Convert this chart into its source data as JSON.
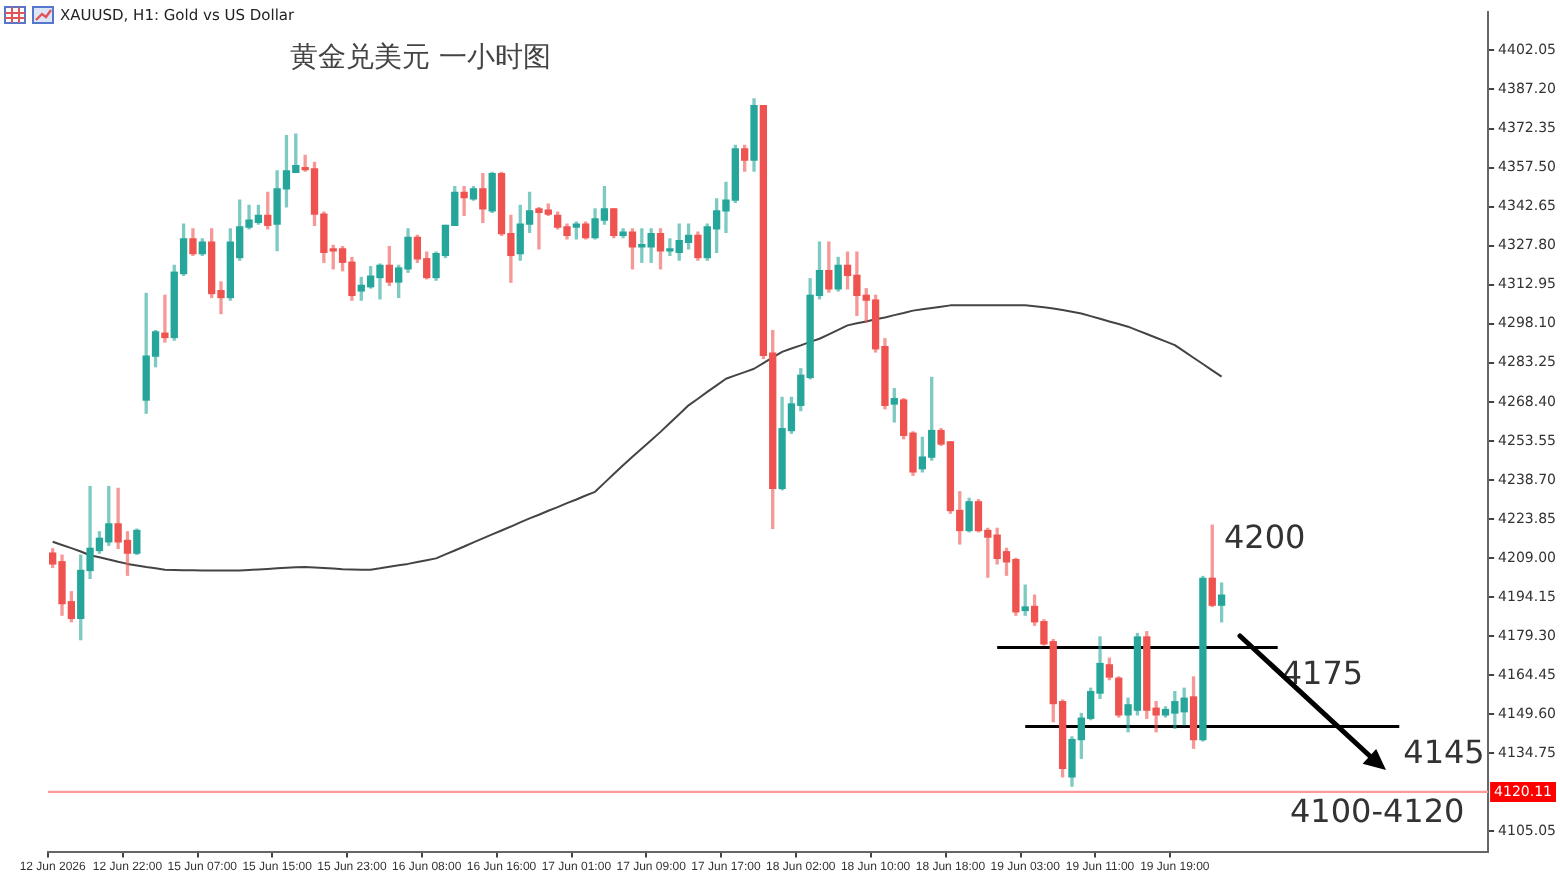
{
  "chart_data": {
    "type": "candlestick",
    "title": "黄金兑美元 一小时图",
    "subtitle": "XAUUSD, H1:  Gold vs US Dollar",
    "categories": [
      "12 Jun 2026",
      null,
      null,
      null,
      null,
      null,
      null,
      null,
      "12 Jun 22:00",
      null,
      null,
      null,
      null,
      null,
      null,
      null,
      "15 Jun 07:00",
      null,
      null,
      null,
      null,
      null,
      null,
      null,
      "15 Jun 15:00",
      null,
      null,
      null,
      null,
      null,
      null,
      null,
      "15 Jun 23:00",
      null,
      null,
      null,
      null,
      null,
      null,
      null,
      "16 Jun 08:00",
      null,
      null,
      null,
      null,
      null,
      null,
      null,
      "16 Jun 16:00",
      null,
      null,
      null,
      null,
      null,
      null,
      null,
      "17 Jun 01:00",
      null,
      null,
      null,
      null,
      null,
      null,
      null,
      "17 Jun 09:00",
      null,
      null,
      null,
      null,
      null,
      null,
      null,
      "17 Jun 17:00",
      null,
      null,
      null,
      null,
      null,
      null,
      null,
      "18 Jun 02:00",
      null,
      null,
      null,
      null,
      null,
      null,
      null,
      "18 Jun 10:00",
      null,
      null,
      null,
      null,
      null,
      null,
      null,
      "18 Jun 18:00",
      null,
      null,
      null,
      null,
      null,
      null,
      null,
      "19 Jun 03:00",
      null,
      null,
      null,
      null,
      null,
      null,
      null,
      "19 Jun 11:00",
      null,
      null,
      null,
      null,
      null,
      null,
      null,
      "19 Jun 19:00",
      null,
      null,
      null,
      null,
      null,
      null,
      null,
      null,
      null,
      null,
      null,
      null,
      null,
      null,
      null,
      null,
      null,
      null,
      null,
      null,
      null,
      null,
      null,
      null,
      null,
      null,
      null,
      null,
      null,
      null,
      null,
      null,
      null
    ],
    "ohlc": [
      [
        4210.9,
        4212.5,
        4205.5,
        4206.8
      ],
      [
        4207.6,
        4210.1,
        4187.3,
        4191.7
      ],
      [
        4192.4,
        4196.2,
        4184.8,
        4186.1
      ],
      [
        4186.1,
        4210.1,
        4178.0,
        4204.3
      ],
      [
        4204.3,
        4236.2,
        4201.3,
        4212.7
      ],
      [
        4211.9,
        4219.0,
        4210.9,
        4216.5
      ],
      [
        4215.2,
        4236.2,
        4213.9,
        4222.0
      ],
      [
        4222.0,
        4235.5,
        4212.7,
        4215.2
      ],
      [
        4215.7,
        4219.0,
        4202.5,
        4210.9
      ],
      [
        4210.9,
        4220.0,
        4210.4,
        4219.5
      ],
      [
        4269.1,
        4309.6,
        4264.1,
        4285.8
      ],
      [
        4285.8,
        4295.5,
        4281.8,
        4295.0
      ],
      [
        4294.5,
        4308.9,
        4291.2,
        4292.9
      ],
      [
        4292.9,
        4320.3,
        4291.9,
        4317.7
      ],
      [
        4317.2,
        4336.0,
        4316.5,
        4330.4
      ],
      [
        4330.4,
        4334.2,
        4324.1,
        4324.8
      ],
      [
        4324.8,
        4330.4,
        4324.1,
        4329.1
      ],
      [
        4329.1,
        4334.2,
        4308.1,
        4309.6
      ],
      [
        4310.7,
        4314.0,
        4302.0,
        4308.1
      ],
      [
        4308.1,
        4334.2,
        4307.1,
        4329.1
      ],
      [
        4323.3,
        4345.1,
        4322.3,
        4334.9
      ],
      [
        4334.9,
        4343.1,
        4334.2,
        4337.5
      ],
      [
        4336.7,
        4343.1,
        4336.0,
        4339.3
      ],
      [
        4339.3,
        4348.1,
        4334.2,
        4335.5
      ],
      [
        4336.0,
        4356.2,
        4325.9,
        4349.4
      ],
      [
        4349.4,
        4369.6,
        4342.6,
        4356.2
      ],
      [
        4355.7,
        4370.2,
        4355.7,
        4358.2
      ],
      [
        4357.5,
        4362.1,
        4356.2,
        4356.7
      ],
      [
        4357.0,
        4359.5,
        4335.5,
        4339.8
      ],
      [
        4339.8,
        4340.5,
        4321.5,
        4325.3
      ],
      [
        4326.6,
        4327.9,
        4319.0,
        4325.8
      ],
      [
        4326.6,
        4327.4,
        4318.3,
        4321.5
      ],
      [
        4321.5,
        4323.3,
        4307.1,
        4308.9
      ],
      [
        4310.6,
        4315.7,
        4307.1,
        4312.7
      ],
      [
        4312.2,
        4319.8,
        4311.7,
        4316.2
      ],
      [
        4315.7,
        4320.8,
        4307.6,
        4320.3
      ],
      [
        4320.3,
        4327.4,
        4312.7,
        4314.0
      ],
      [
        4314.0,
        4320.3,
        4308.1,
        4319.3
      ],
      [
        4319.0,
        4334.2,
        4317.7,
        4330.9
      ],
      [
        4330.9,
        4331.7,
        4321.5,
        4322.8
      ],
      [
        4322.8,
        4325.3,
        4315.2,
        4315.7
      ],
      [
        4315.7,
        4325.3,
        4314.7,
        4324.8
      ],
      [
        4324.1,
        4335.5,
        4323.3,
        4335.5
      ],
      [
        4335.5,
        4350.2,
        4335.5,
        4348.1
      ],
      [
        4348.1,
        4350.2,
        4339.3,
        4346.1
      ],
      [
        4345.6,
        4350.2,
        4345.1,
        4349.4
      ],
      [
        4349.4,
        4355.2,
        4336.7,
        4341.8
      ],
      [
        4341.0,
        4355.7,
        4340.5,
        4355.2
      ],
      [
        4355.2,
        4355.7,
        4331.7,
        4332.4
      ],
      [
        4332.4,
        4339.3,
        4313.9,
        4324.1
      ],
      [
        4324.8,
        4343.1,
        4322.3,
        4336.0
      ],
      [
        4336.0,
        4348.1,
        4332.9,
        4341.0
      ],
      [
        4341.8,
        4342.3,
        4326.6,
        4340.5
      ],
      [
        4341.3,
        4343.6,
        4339.3,
        4339.8
      ],
      [
        4339.3,
        4340.5,
        4334.2,
        4334.9
      ],
      [
        4334.9,
        4336.0,
        4330.4,
        4331.7
      ],
      [
        4334.9,
        4336.7,
        4330.4,
        4336.0
      ],
      [
        4336.0,
        4336.7,
        4330.4,
        4330.9
      ],
      [
        4330.9,
        4341.8,
        4330.4,
        4338.0
      ],
      [
        4337.5,
        4350.2,
        4336.0,
        4341.8
      ],
      [
        4341.8,
        4341.8,
        4330.9,
        4331.7
      ],
      [
        4331.7,
        4334.2,
        4330.9,
        4332.9
      ],
      [
        4332.9,
        4334.2,
        4319.0,
        4327.4
      ],
      [
        4327.4,
        4334.2,
        4321.5,
        4327.9
      ],
      [
        4327.4,
        4334.2,
        4321.5,
        4332.4
      ],
      [
        4332.4,
        4334.2,
        4319.0,
        4325.8
      ],
      [
        4325.8,
        4330.4,
        4324.1,
        4326.6
      ],
      [
        4325.3,
        4336.0,
        4322.3,
        4329.7
      ],
      [
        4329.1,
        4336.0,
        4326.6,
        4331.7
      ],
      [
        4331.7,
        4332.9,
        4322.3,
        4323.3
      ],
      [
        4323.3,
        4336.0,
        4322.3,
        4334.9
      ],
      [
        4334.2,
        4345.6,
        4325.3,
        4341.0
      ],
      [
        4341.0,
        4351.9,
        4332.9,
        4345.1
      ],
      [
        4345.1,
        4365.9,
        4344.3,
        4364.6
      ],
      [
        4364.6,
        4365.9,
        4356.2,
        4360.3
      ],
      [
        4360.3,
        4383.6,
        4356.2,
        4381.0
      ],
      [
        4381.0,
        4381.0,
        4285.0,
        4286.1
      ],
      [
        4286.9,
        4295.5,
        4220.3,
        4235.5
      ],
      [
        4235.5,
        4270.1,
        4235.0,
        4258.2
      ],
      [
        4257.5,
        4270.1,
        4256.5,
        4267.6
      ],
      [
        4267.1,
        4281.0,
        4265.1,
        4278.5
      ],
      [
        4277.7,
        4315.2,
        4277.2,
        4308.9
      ],
      [
        4308.9,
        4329.1,
        4307.6,
        4318.3
      ],
      [
        4318.3,
        4329.1,
        4310.2,
        4311.4
      ],
      [
        4311.4,
        4323.3,
        4310.6,
        4320.3
      ],
      [
        4320.3,
        4325.3,
        4311.4,
        4316.5
      ],
      [
        4316.5,
        4325.3,
        4301.3,
        4308.9
      ],
      [
        4308.9,
        4311.4,
        4298.8,
        4307.1
      ],
      [
        4307.1,
        4308.9,
        4287.4,
        4288.6
      ],
      [
        4289.4,
        4292.4,
        4265.8,
        4267.1
      ],
      [
        4267.6,
        4273.4,
        4260.8,
        4269.6
      ],
      [
        4269.1,
        4269.6,
        4254.4,
        4255.7
      ],
      [
        4256.5,
        4257.0,
        4240.5,
        4241.8
      ],
      [
        4243.0,
        4254.9,
        4241.8,
        4247.4
      ],
      [
        4247.4,
        4277.7,
        4246.3,
        4257.5
      ],
      [
        4257.5,
        4258.2,
        4251.9,
        4252.4
      ],
      [
        4253.2,
        4253.2,
        4226.1,
        4227.1
      ],
      [
        4227.1,
        4234.2,
        4214.4,
        4219.5
      ],
      [
        4219.5,
        4231.7,
        4219.0,
        4230.4
      ],
      [
        4230.4,
        4231.2,
        4219.0,
        4219.5
      ],
      [
        4219.5,
        4220.3,
        4201.8,
        4217.0
      ],
      [
        4217.7,
        4220.3,
        4206.8,
        4208.9
      ],
      [
        4211.4,
        4212.7,
        4202.5,
        4207.6
      ],
      [
        4208.4,
        4208.9,
        4187.3,
        4188.6
      ],
      [
        4189.1,
        4198.7,
        4187.3,
        4190.4
      ],
      [
        4190.6,
        4194.9,
        4183.5,
        4184.8
      ],
      [
        4184.8,
        4185.5,
        4176.0,
        4176.4
      ],
      [
        4177.2,
        4178.0,
        4146.8,
        4153.7
      ],
      [
        4154.4,
        4155.0,
        4125.8,
        4129.1
      ],
      [
        4125.8,
        4141.0,
        4122.3,
        4140.0
      ],
      [
        4140.0,
        4149.9,
        4132.9,
        4148.1
      ],
      [
        4148.1,
        4159.5,
        4147.6,
        4158.2
      ],
      [
        4157.7,
        4179.0,
        4155.7,
        4168.9
      ],
      [
        4168.4,
        4170.9,
        4162.8,
        4163.8
      ],
      [
        4163.3,
        4163.8,
        4148.6,
        4149.4
      ],
      [
        4149.4,
        4155.7,
        4143.0,
        4153.2
      ],
      [
        4151.2,
        4180.3,
        4149.4,
        4179.0
      ],
      [
        4179.0,
        4181.0,
        4148.1,
        4151.2
      ],
      [
        4151.9,
        4154.4,
        4143.0,
        4149.4
      ],
      [
        4149.4,
        4152.4,
        4148.6,
        4151.4
      ],
      [
        4150.1,
        4158.2,
        4144.3,
        4154.4
      ],
      [
        4150.6,
        4159.5,
        4145.6,
        4155.7
      ],
      [
        4156.2,
        4163.8,
        4136.7,
        4140.0
      ],
      [
        4140.0,
        4202.0,
        4139.5,
        4201.3
      ],
      [
        4201.3,
        4221.5,
        4190.6,
        4191.1
      ],
      [
        4191.1,
        4199.5,
        4184.8,
        4194.9
      ],
      null,
      null,
      null,
      null,
      null,
      null,
      null,
      null,
      null,
      null,
      null,
      null,
      null,
      null,
      null,
      null,
      null,
      null,
      null,
      null,
      null,
      null,
      null,
      null,
      null,
      null,
      null,
      null
    ],
    "colors": [
      "#ef5350",
      "#ef5350",
      "#ef5350",
      "#26a69a",
      "#26a69a",
      "#26a69a",
      "#26a69a",
      "#ef5350",
      "#ef5350",
      "#26a69a",
      "#26a69a",
      "#26a69a",
      "#ef5350",
      "#26a69a",
      "#26a69a",
      "#ef5350",
      "#26a69a",
      "#ef5350",
      "#ef5350",
      "#26a69a",
      "#26a69a",
      "#26a69a",
      "#26a69a",
      "#ef5350",
      "#26a69a",
      "#26a69a",
      "#26a69a",
      "#ef5350",
      "#ef5350",
      "#ef5350",
      "#ef5350",
      "#ef5350",
      "#ef5350",
      "#26a69a",
      "#26a69a",
      "#26a69a",
      "#ef5350",
      "#26a69a",
      "#26a69a",
      "#ef5350",
      "#ef5350",
      "#26a69a",
      "#26a69a",
      "#26a69a",
      "#ef5350",
      "#26a69a",
      "#ef5350",
      "#26a69a",
      "#ef5350",
      "#ef5350",
      "#26a69a",
      "#26a69a",
      "#ef5350",
      "#ef5350",
      "#ef5350",
      "#ef5350",
      "#26a69a",
      "#ef5350",
      "#26a69a",
      "#26a69a",
      "#ef5350",
      "#26a69a",
      "#ef5350",
      "#26a69a",
      "#26a69a",
      "#ef5350",
      "#26a69a",
      "#26a69a",
      "#26a69a",
      "#ef5350",
      "#26a69a",
      "#26a69a",
      "#26a69a",
      "#26a69a",
      "#ef5350",
      "#26a69a",
      "#ef5350",
      "#ef5350",
      "#26a69a",
      "#26a69a",
      "#26a69a",
      "#26a69a",
      "#26a69a",
      "#ef5350",
      "#26a69a",
      "#ef5350",
      "#ef5350",
      "#ef5350",
      "#ef5350",
      "#ef5350",
      "#26a69a",
      "#ef5350",
      "#ef5350",
      "#26a69a",
      "#26a69a",
      "#ef5350",
      "#ef5350",
      "#ef5350",
      "#26a69a",
      "#ef5350",
      "#ef5350",
      "#ef5350",
      "#ef5350",
      "#ef5350",
      "#26a69a",
      "#ef5350",
      "#ef5350",
      "#ef5350",
      "#ef5350",
      "#26a69a",
      "#26a69a",
      "#26a69a",
      "#26a69a",
      "#ef5350",
      "#ef5350",
      "#26a69a",
      "#26a69a",
      "#ef5350",
      "#ef5350",
      "#26a69a",
      "#26a69a",
      "#26a69a",
      "#ef5350",
      "#26a69a",
      "#ef5350",
      "#26a69a",
      null,
      null,
      null,
      null,
      null,
      null,
      null,
      null,
      null,
      null,
      null,
      null,
      null,
      null,
      null,
      null,
      null,
      null,
      null,
      null,
      null,
      null,
      null,
      null,
      null,
      null,
      null,
      null
    ],
    "series": [
      {
        "type": "line",
        "color": "#444444",
        "values": [
          4215.2,
          4214.0,
          4212.8,
          4211.5,
          4210.1,
          4209.3,
          4208.5,
          4207.6,
          4206.8,
          4206.2,
          4205.6,
          4205.1,
          4204.6,
          4204.5,
          4204.4,
          4204.4,
          4204.3,
          4204.3,
          4204.3,
          4204.3,
          4204.3,
          4204.5,
          4204.7,
          4204.9,
          4205.1,
          4205.3,
          4205.5,
          4205.6,
          4205.4,
          4205.2,
          4205.0,
          4204.8,
          4204.7,
          4204.6,
          4204.6,
          4205.1,
          4205.7,
          4206.3,
          4206.8,
          4207.5,
          4208.2,
          4208.9,
          4210.4,
          4211.9,
          4213.4,
          4215.0,
          4216.5,
          4218.0,
          4219.5,
          4221.0,
          4222.6,
          4224.1,
          4225.5,
          4227.0,
          4228.4,
          4229.9,
          4231.3,
          4232.8,
          4234.2,
          4237.6,
          4241.0,
          4244.3,
          4247.5,
          4250.7,
          4253.8,
          4257.0,
          4260.4,
          4263.7,
          4267.1,
          4269.6,
          4272.2,
          4274.7,
          4277.2,
          4278.5,
          4279.7,
          4281.0,
          4283.1,
          4285.3,
          4287.4,
          4288.7,
          4289.9,
          4291.2,
          4292.4,
          4294.1,
          4295.8,
          4297.5,
          4298.3,
          4299.0,
          4299.8,
          4300.5,
          4301.4,
          4302.2,
          4303.1,
          4303.6,
          4304.1,
          4304.6,
          4305.1,
          4305.1,
          4305.1,
          4305.1,
          4305.1,
          4305.1,
          4305.1,
          4305.1,
          4305.1,
          4304.8,
          4304.4,
          4303.9,
          4303.3,
          4302.7,
          4302.0,
          4301.0,
          4300.0,
          4299.0,
          4298.0,
          4297.0,
          4295.6,
          4294.2,
          4292.8,
          4291.4,
          4290.0,
          4287.6,
          4285.2,
          4282.8,
          4280.4,
          4278.0,
          null,
          null,
          null,
          null,
          null,
          null,
          null,
          null,
          null,
          null,
          null,
          null,
          null,
          null,
          null,
          null,
          null,
          null,
          null,
          null,
          null,
          null,
          null,
          null,
          null,
          null,
          null,
          null
        ]
      },
      {
        "type": "line",
        "name": "4175",
        "color": "#000000",
        "values": [
          null,
          null,
          null,
          null,
          null,
          null,
          null,
          null,
          null,
          null,
          null,
          null,
          null,
          null,
          null,
          null,
          null,
          null,
          null,
          null,
          null,
          null,
          null,
          null,
          null,
          null,
          null,
          null,
          null,
          null,
          null,
          null,
          null,
          null,
          null,
          null,
          null,
          null,
          null,
          null,
          null,
          null,
          null,
          null,
          null,
          null,
          null,
          null,
          null,
          null,
          null,
          null,
          null,
          null,
          null,
          null,
          null,
          null,
          null,
          null,
          null,
          null,
          null,
          null,
          null,
          null,
          null,
          null,
          null,
          null,
          null,
          null,
          null,
          null,
          null,
          null,
          null,
          null,
          null,
          null,
          null,
          null,
          null,
          null,
          null,
          null,
          null,
          null,
          null,
          null,
          null,
          null,
          null,
          null,
          null,
          null,
          null,
          null,
          null,
          null,
          null,
          4175,
          4175,
          4175,
          4175,
          4175,
          4175,
          4175,
          4175,
          4175,
          4175,
          4175,
          4175,
          4175,
          4175,
          4175,
          4175,
          4175,
          4175,
          4175,
          4175,
          4175,
          4175,
          4175,
          4175,
          4175,
          4175,
          4175,
          4175,
          4175,
          4175,
          4175,
          null,
          null,
          null,
          null,
          null,
          null,
          null,
          null,
          null,
          null,
          null,
          null,
          null,
          null,
          null,
          null,
          null,
          null,
          null,
          null,
          null,
          null
        ]
      },
      {
        "type": "line",
        "name": "4145",
        "color": "#000000",
        "values": [
          null,
          null,
          null,
          null,
          null,
          null,
          null,
          null,
          null,
          null,
          null,
          null,
          null,
          null,
          null,
          null,
          null,
          null,
          null,
          null,
          null,
          null,
          null,
          null,
          null,
          null,
          null,
          null,
          null,
          null,
          null,
          null,
          null,
          null,
          null,
          null,
          null,
          null,
          null,
          null,
          null,
          null,
          null,
          null,
          null,
          null,
          null,
          null,
          null,
          null,
          null,
          null,
          null,
          null,
          null,
          null,
          null,
          null,
          null,
          null,
          null,
          null,
          null,
          null,
          null,
          null,
          null,
          null,
          null,
          null,
          null,
          null,
          null,
          null,
          null,
          null,
          null,
          null,
          null,
          null,
          null,
          null,
          null,
          null,
          null,
          null,
          null,
          null,
          null,
          null,
          null,
          null,
          null,
          null,
          null,
          null,
          null,
          null,
          null,
          null,
          null,
          null,
          null,
          null,
          4145,
          4145,
          4145,
          4145,
          4145,
          4145,
          4145,
          4145,
          4145,
          4145,
          4145,
          4145,
          4145,
          4145,
          4145,
          4145,
          4145,
          4145,
          4145,
          4145,
          4145,
          4145,
          4145,
          4145,
          4145,
          4145,
          4145,
          4145,
          4145,
          4145,
          4145,
          4145,
          4145,
          4145,
          4145,
          4145,
          4145,
          4145,
          4145,
          4145,
          4145,
          null,
          null,
          null,
          null,
          null,
          null,
          null,
          null,
          null
        ]
      }
    ],
    "ylim": [
      4097.4,
      4416.5
    ],
    "yticks": [
      4402.05,
      {
        "value": 4387.2,
        "label": "4387.20"
      },
      4372.35,
      {
        "value": 4357.5,
        "label": "4357.50"
      },
      4342.65,
      {
        "value": 4327.8,
        "label": "4327.80"
      },
      4312.95,
      {
        "value": 4298.1,
        "label": "4298.10"
      },
      4283.25,
      {
        "value": 4268.4,
        "label": "4268.40"
      },
      4253.55,
      {
        "value": 4238.7,
        "label": "4238.70"
      },
      4223.85,
      {
        "value": 4209,
        "label": "4209.00"
      },
      4194.15,
      {
        "value": 4179.3,
        "label": "4179.30"
      },
      4164.45,
      {
        "value": 4149.6,
        "label": "4149.60"
      },
      4134.75,
      4105.05
    ],
    "ref_lines": [
      {
        "axis": "y",
        "value": 4120.11,
        "label": "4120.11",
        "color": "#ff9a9a"
      }
    ],
    "annotations": [
      "4200",
      "4100-4120"
    ]
  }
}
